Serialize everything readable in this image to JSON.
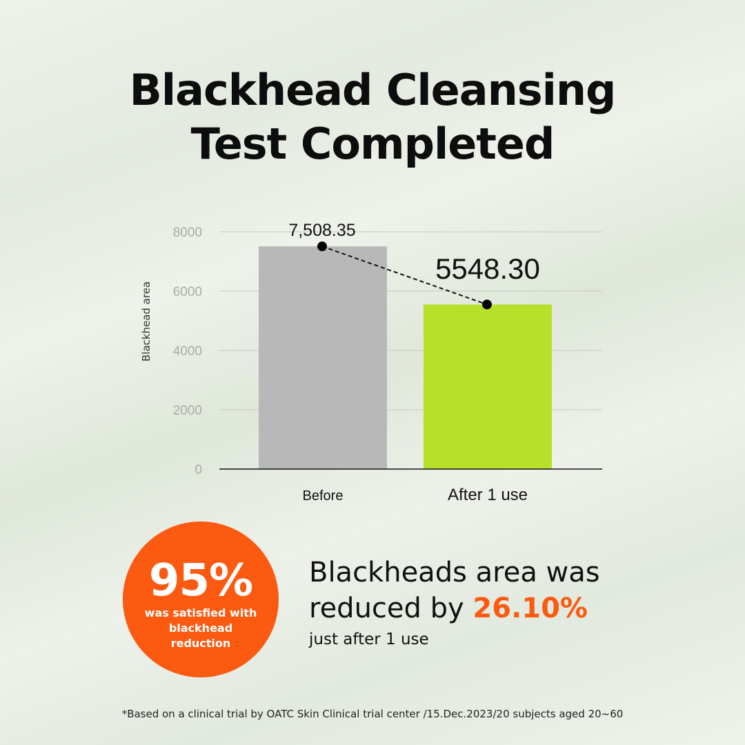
{
  "title": [
    "Blackhead Cleansing",
    "Test Completed"
  ],
  "chart_data": {
    "type": "bar",
    "categories": [
      "Before",
      "After 1 use"
    ],
    "values": [
      7508.35,
      5548.3
    ],
    "data_labels": [
      "7,508.35",
      "5548.30"
    ],
    "ylabel": "Blackhead area",
    "ylim": [
      0,
      8000
    ],
    "yticks": [
      "0",
      "2000",
      "4000",
      "6000",
      "8000"
    ],
    "grid": true,
    "colors": [
      "#b8b8b8",
      "#b7e02b"
    ],
    "connector": "dashed line with dots"
  },
  "badge": {
    "value": "95%",
    "text": "was satisfied with blackhead reduction",
    "color": "#fb5a10"
  },
  "stat": {
    "line1": "Blackheads area was",
    "line2_prefix": "reduced by ",
    "percent": "26.10%",
    "line3": "just after 1 use"
  },
  "footnote": "*Based on a clinical trial by OATC Skin Clinical trial center /15.Dec.2023/20 subjects aged 20~60"
}
